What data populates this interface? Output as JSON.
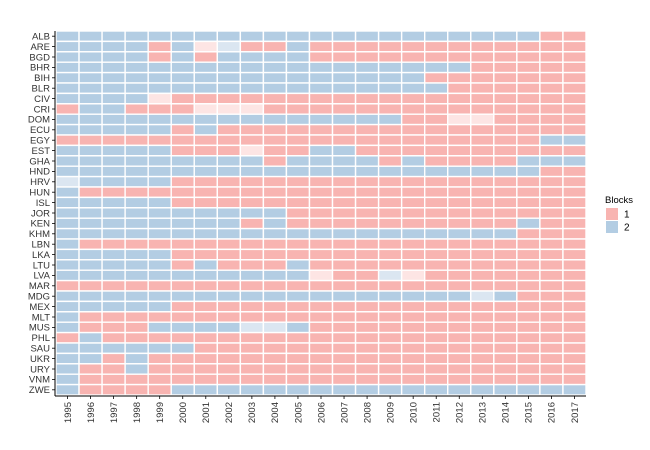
{
  "chart_data": {
    "type": "heatmap",
    "title": "",
    "xlabel": "",
    "ylabel": "",
    "x": [
      "1995",
      "1996",
      "1997",
      "1998",
      "1999",
      "2000",
      "2001",
      "2002",
      "2003",
      "2004",
      "2005",
      "2006",
      "2007",
      "2008",
      "2009",
      "2010",
      "2011",
      "2012",
      "2013",
      "2014",
      "2015",
      "2016",
      "2017"
    ],
    "y": [
      "ALB",
      "ARE",
      "BGD",
      "BHR",
      "BIH",
      "BLR",
      "CIV",
      "CRI",
      "DOM",
      "ECU",
      "EGY",
      "EST",
      "GHA",
      "HND",
      "HRV",
      "HUN",
      "ISL",
      "JOR",
      "KEN",
      "KHM",
      "LBN",
      "LKA",
      "LTU",
      "LVA",
      "MAR",
      "MDG",
      "MEX",
      "MLT",
      "MUS",
      "PHL",
      "SAU",
      "UKR",
      "URY",
      "VNM",
      "ZWE"
    ],
    "rows": [
      "22222222222222222222211",
      "22221212112111111111111",
      "22221212222111111111111",
      "22222222222222222211111",
      "22222222222222221111111",
      "22222222222222222111111",
      "22221111111111111111111",
      "12211111111111111111111",
      "22222222222222211111111",
      "22222121111111111111111",
      "11111111111111111111122",
      "22222111111221111111111",
      "22222222212222121111222",
      "22222222222222222222211",
      "22222111111111111111111",
      "21111111111111111111111",
      "22222111111111111111111",
      "22222222221111111111111",
      "22222222121111111111211",
      "22222222222222222222111",
      "21111111111111111111111",
      "22222111111111111111111",
      "22222121112111111111111",
      "22222222222111211111111",
      "11111111111111111111111",
      "22222222222222222222111",
      "22222111111111111111111",
      "21111111111111111111111",
      "21112222222111111111111",
      "12111111111111111111111",
      "22222211111111111111111",
      "22121111111111111111111",
      "21121111111111111111111",
      "21111111111111111111111",
      "21111222222222222222222"
    ],
    "faded": [
      {
        "year": "2001",
        "country": "ARE"
      },
      {
        "year": "2002",
        "country": "ARE"
      },
      {
        "year": "1999",
        "country": "CIV"
      },
      {
        "year": "2001",
        "country": "CRI"
      },
      {
        "year": "2002",
        "country": "CRI"
      },
      {
        "year": "2003",
        "country": "CRI"
      },
      {
        "year": "2012",
        "country": "DOM"
      },
      {
        "year": "2013",
        "country": "DOM"
      },
      {
        "year": "2003",
        "country": "EST"
      },
      {
        "year": "1995",
        "country": "HRV"
      },
      {
        "year": "2006",
        "country": "LVA"
      },
      {
        "year": "2009",
        "country": "LVA"
      },
      {
        "year": "2010",
        "country": "LVA"
      },
      {
        "year": "2013",
        "country": "MDG"
      },
      {
        "year": "2003",
        "country": "MUS"
      },
      {
        "year": "2004",
        "country": "MUS"
      }
    ],
    "legend": {
      "title": "Blocks",
      "position": "right",
      "items": [
        {
          "label": "1",
          "color": "#f8b4b1"
        },
        {
          "label": "2",
          "color": "#b3cde3"
        }
      ]
    },
    "colors": {
      "1": "#f8b4b1",
      "2": "#b3cde3",
      "1_faded": "#fde5e4",
      "2_faded": "#dbe6f1",
      "gridline": "#ffffff",
      "axis": "#000000",
      "background": "#ffffff"
    }
  }
}
